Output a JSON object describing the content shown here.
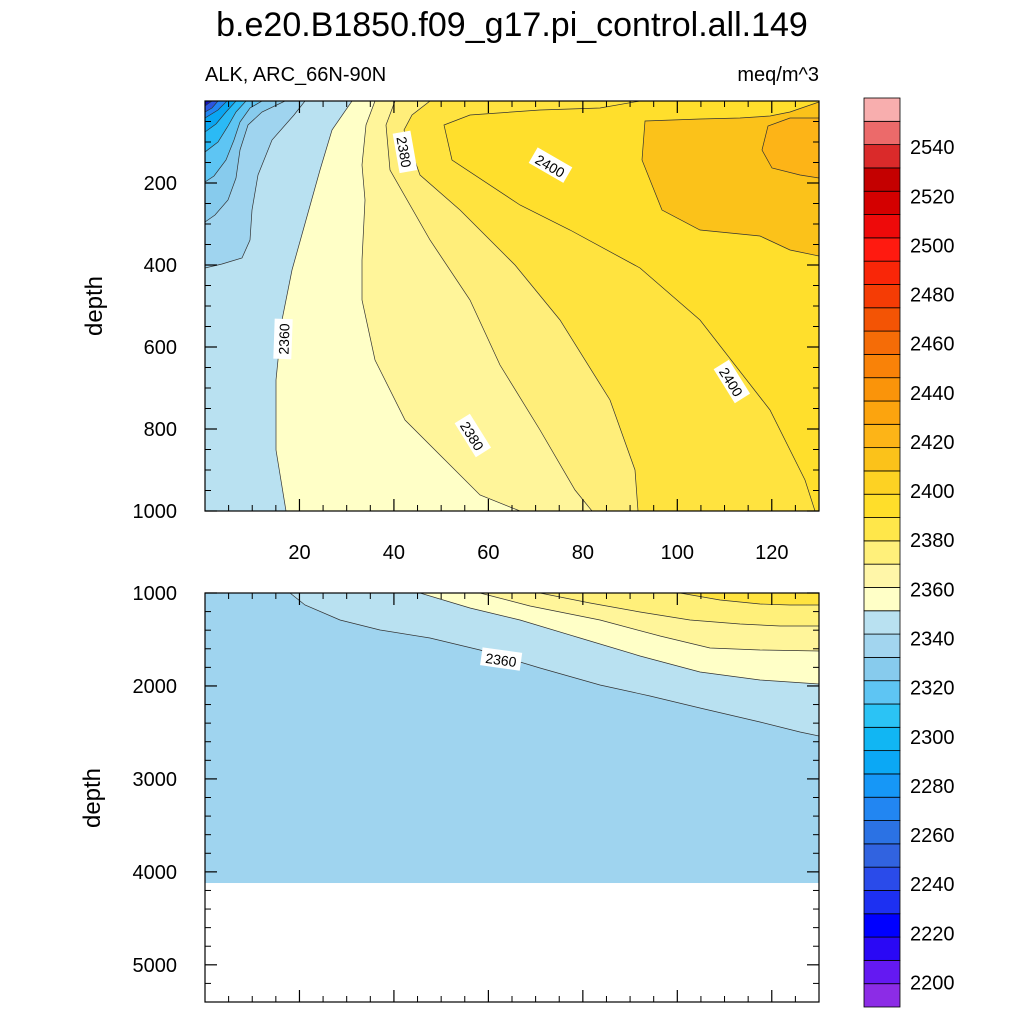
{
  "title": "b.e20.B1850.f09_g17.pi_control.all.149",
  "subtitle_left": "ALK, ARC_66N-90N",
  "subtitle_right": "meq/m^3",
  "chart_data": [
    {
      "type": "contour",
      "panel": "upper",
      "ylabel": "depth",
      "xlabel": "",
      "xlim": [
        0,
        130
      ],
      "ylim": [
        1000,
        0
      ],
      "xticks": [
        20,
        40,
        60,
        80,
        100,
        120
      ],
      "yticks": [
        200,
        400,
        600,
        800,
        1000
      ],
      "contour_labels": [
        "2360",
        "2380",
        "2400",
        "2380",
        "2400",
        "2360"
      ],
      "colors": [
        "#9fd4ef",
        "#b9e1f1",
        "#ffffc7",
        "#fff596",
        "#ffeb6e",
        "#ffe03a",
        "#fcd026",
        "#fdbb12",
        "#7fc4e8",
        "#5ec0f3",
        "#1fb2f3"
      ]
    },
    {
      "type": "contour",
      "panel": "lower",
      "ylabel": "depth",
      "xlabel": "",
      "xlim": [
        0,
        130
      ],
      "ylim": [
        5400,
        1000
      ],
      "yticks": [
        1000,
        2000,
        3000,
        4000,
        5000
      ],
      "contour_labels": [
        "2360"
      ],
      "bottom_depth": 4120
    }
  ],
  "colorbar": {
    "labels": [
      "2540",
      "2520",
      "2500",
      "2480",
      "2460",
      "2440",
      "2420",
      "2400",
      "2380",
      "2360",
      "2340",
      "2320",
      "2300",
      "2280",
      "2260",
      "2240",
      "2220",
      "2200"
    ],
    "min": 2190,
    "max": 2560,
    "step": 10,
    "colors": [
      "#8c2ce6",
      "#6419f2",
      "#2a08f5",
      "#0000ff",
      "#1d30f2",
      "#2a4bea",
      "#3163e0",
      "#2b72e4",
      "#2286f2",
      "#1697f7",
      "#0ba8f5",
      "#11b6f3",
      "#2bc3f5",
      "#5ec5f3",
      "#87cbed",
      "#a2d5ef",
      "#b9e1f1",
      "#ffffc7",
      "#fff6a8",
      "#fff07a",
      "#ffe74a",
      "#ffde2a",
      "#fdd223",
      "#fbc21a",
      "#fdb417",
      "#fca40e",
      "#fa940a",
      "#f98208",
      "#f56c07",
      "#f35405",
      "#f53c05",
      "#f92608",
      "#ff1a10",
      "#ee0a0a",
      "#d40000",
      "#c40000",
      "#da2a2a",
      "#ec6a6a",
      "#f8aeae"
    ]
  }
}
